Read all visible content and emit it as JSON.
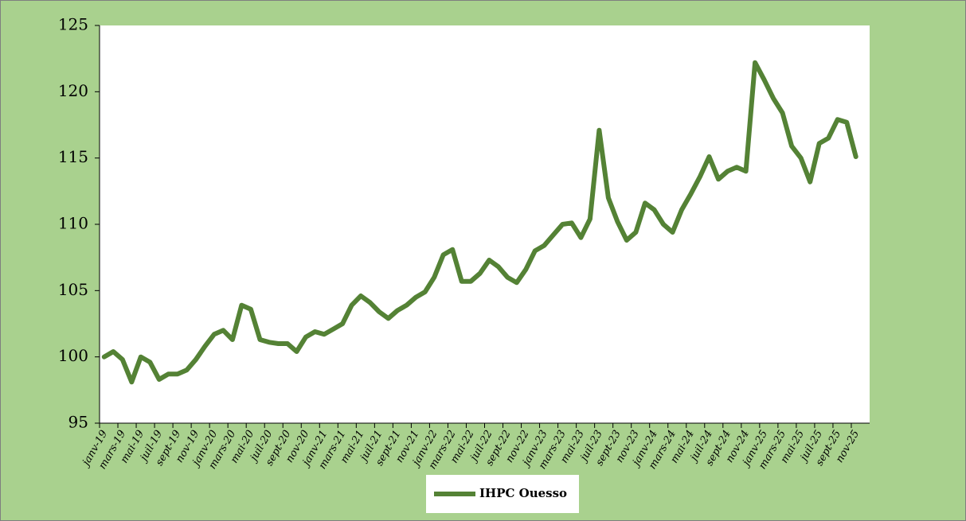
{
  "chart_data": {
    "type": "line",
    "categories": [
      "janv-19",
      null,
      "mars-19",
      null,
      "mai-19",
      null,
      "juil-19",
      null,
      "sept-19",
      null,
      "nov-19",
      null,
      "janv-20",
      null,
      "mars-20",
      null,
      "mai-20",
      null,
      "juil-20",
      null,
      "sept-20",
      null,
      "nov-20",
      null,
      "janv-21",
      null,
      "mars-21",
      null,
      "mai-21",
      null,
      "juil-21",
      null,
      "sept-21",
      null,
      "nov-21",
      null,
      "janv-22",
      null,
      "mars-22",
      null,
      "mai-22",
      null,
      "juil-22",
      null,
      "sept-22",
      null,
      "nov-22",
      null,
      "janv-23",
      null,
      "mars-23",
      null,
      "mai-23",
      null,
      "juil-23",
      null,
      "sept-23",
      null,
      "nov-23",
      null,
      "janv-24",
      null,
      "mars-24",
      null,
      "mai-24",
      null,
      "juil-24",
      null,
      "sept-24",
      null,
      "nov-24",
      null,
      "janv-25",
      null,
      "mars-25",
      null,
      "mai-25",
      null,
      "juil-25",
      null,
      "sept-25",
      null,
      "nov-25"
    ],
    "series": [
      {
        "name": "IHPC Ouesso",
        "color": "#548235",
        "values": [
          100.0,
          100.4,
          99.8,
          98.1,
          100.0,
          99.6,
          98.3,
          98.7,
          98.7,
          99.0,
          99.8,
          100.8,
          101.7,
          102.0,
          101.3,
          103.9,
          103.6,
          101.3,
          101.1,
          101.0,
          101.0,
          100.4,
          101.5,
          101.9,
          101.7,
          102.1,
          102.5,
          103.9,
          104.6,
          104.1,
          103.4,
          102.9,
          103.5,
          103.9,
          104.5,
          104.9,
          106.0,
          107.7,
          108.1,
          105.7,
          105.7,
          106.3,
          107.3,
          106.8,
          106.0,
          105.6,
          106.6,
          108.0,
          108.4,
          109.2,
          110.0,
          110.1,
          109.0,
          110.4,
          117.1,
          112.0,
          110.2,
          108.8,
          109.4,
          111.6,
          111.1,
          110.0,
          109.4,
          111.1,
          112.3,
          113.6,
          115.1,
          113.4,
          114.0,
          114.3,
          114.0,
          122.2,
          120.9,
          119.5,
          118.4,
          115.9,
          115.0,
          113.2,
          116.1,
          116.5,
          117.9,
          117.7,
          115.1
        ]
      }
    ],
    "ylim": [
      95,
      125
    ],
    "yticks": [
      95,
      100,
      105,
      110,
      115,
      120,
      125
    ],
    "legend": "bottom"
  }
}
